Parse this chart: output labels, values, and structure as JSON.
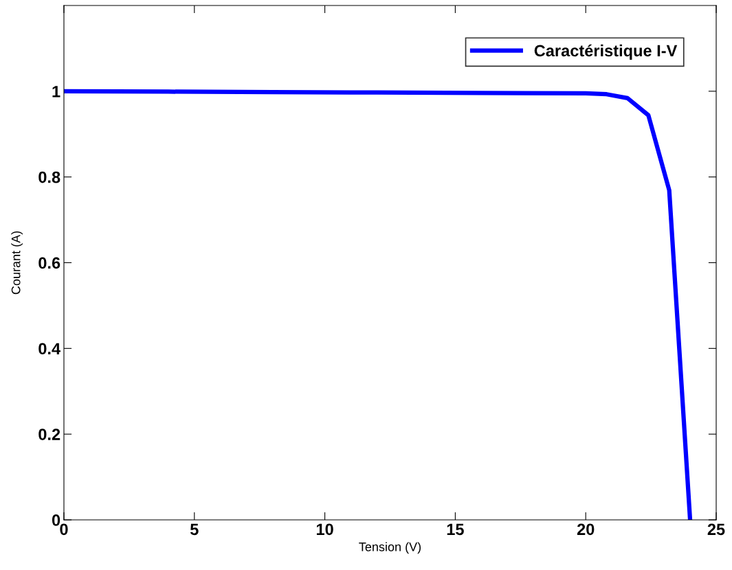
{
  "chart_data": {
    "type": "line",
    "xlabel": "Tension (V)",
    "ylabel": "Courant (A)",
    "x": [
      0,
      4,
      8,
      12,
      16,
      20,
      20.8,
      21.6,
      22.4,
      23.2,
      24.0
    ],
    "series": [
      {
        "name": "Caractéristique I-V",
        "color": "#0000ff",
        "values": [
          1.0,
          0.999,
          0.998,
          0.997,
          0.996,
          0.995,
          0.993,
          0.984,
          0.944,
          0.769,
          0.0
        ]
      }
    ],
    "xlim": [
      0,
      25
    ],
    "ylim": [
      0,
      1.2
    ],
    "xticks": [
      0,
      5,
      10,
      15,
      20,
      25
    ],
    "yticks": [
      0,
      0.2,
      0.4,
      0.6,
      0.8,
      1
    ],
    "grid": false,
    "legend": "top right",
    "marker": "none",
    "line_style": "solid"
  }
}
